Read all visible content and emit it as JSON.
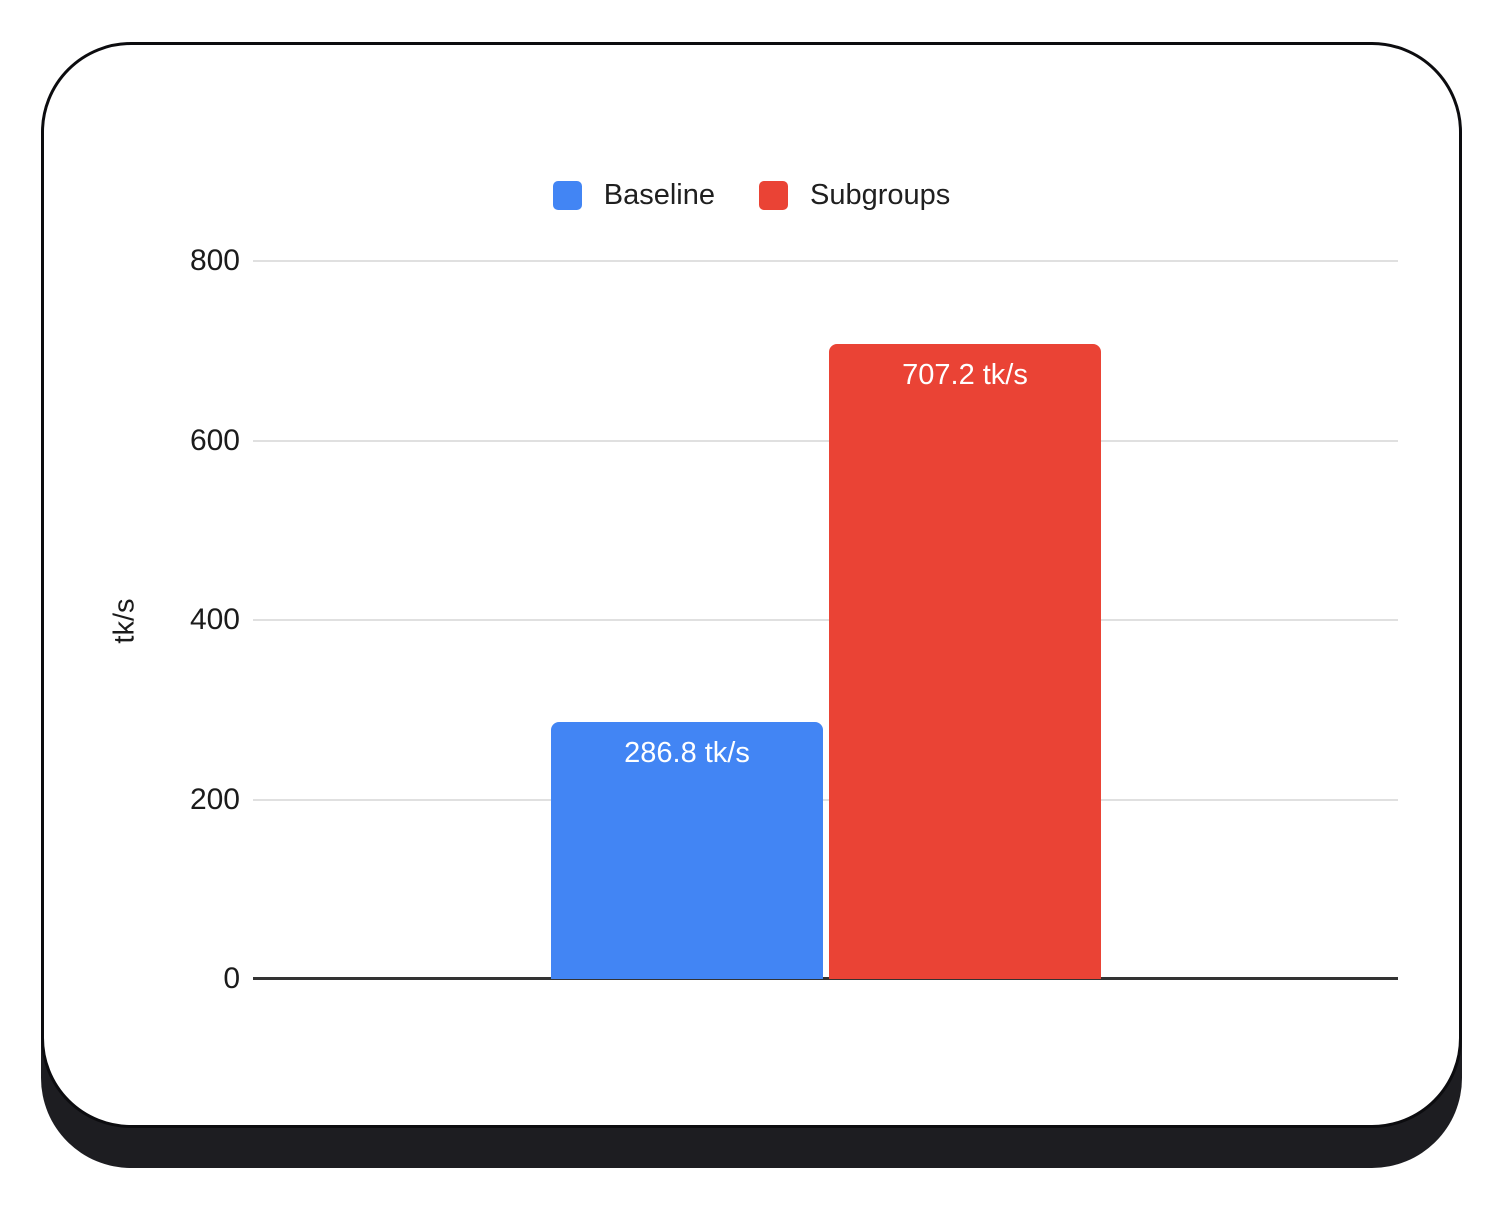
{
  "legend": {
    "items": [
      {
        "label": "Baseline",
        "color": "#4285f4"
      },
      {
        "label": "Subgroups",
        "color": "#ea4335"
      }
    ]
  },
  "chart_data": {
    "type": "bar",
    "title": "",
    "xlabel": "",
    "ylabel": "tk/s",
    "ylim": [
      0,
      800
    ],
    "yticks": [
      0,
      200,
      400,
      600,
      800
    ],
    "grid": true,
    "legend_position": "top",
    "categories": [
      "Baseline",
      "Subgroups"
    ],
    "series": [
      {
        "name": "Baseline",
        "value": 286.8,
        "value_label": "286.8 tk/s",
        "color": "#4285f4"
      },
      {
        "name": "Subgroups",
        "value": 707.2,
        "value_label": "707.2 tk/s",
        "color": "#ea4335"
      }
    ]
  },
  "colors": {
    "grid": "#e0e0e0",
    "axis": "#333333",
    "card_shadow": "#1d1d21",
    "card_border": "#0c0c0f",
    "text": "#1b1b1b",
    "bar_label_text": "#ffffff"
  }
}
